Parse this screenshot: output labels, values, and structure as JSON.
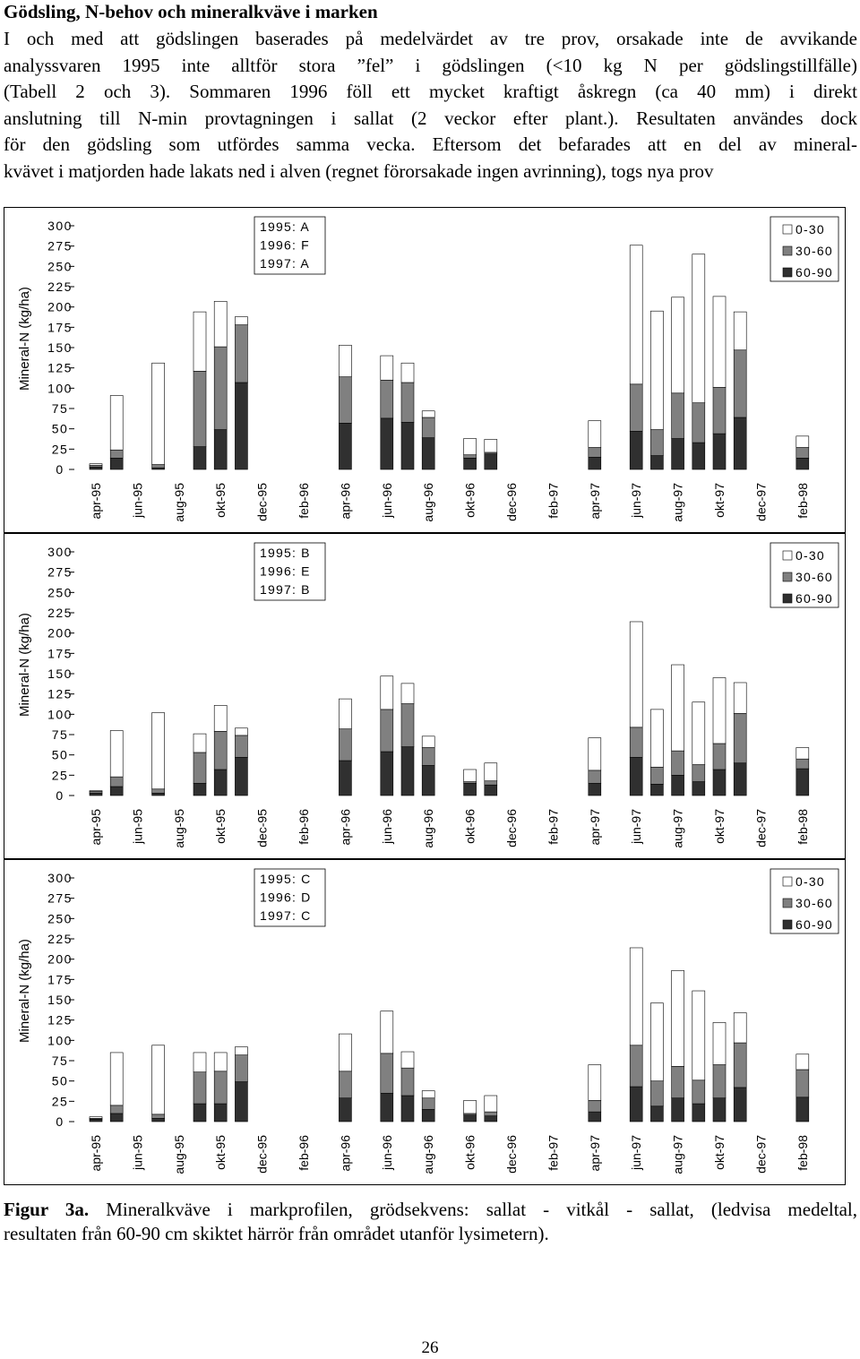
{
  "document": {
    "heading": "Gödsling, N-behov och mineralkväve i marken",
    "intro_lines": [
      "I och med att gödslingen baserades på medelvärdet av tre prov, orsakade inte de avvikande",
      "analyssvaren 1995 inte alltför stora ”fel” i gödslingen (<10 kg N per gödslingstillfälle)",
      "(Tabell 2 och 3). Sommaren 1996 föll ett mycket kraftigt åskregn (ca 40 mm) i direkt",
      "anslutning till N-min provtagningen i sallat (2 veckor efter plant.). Resultaten användes dock",
      "för den gödsling som utfördes samma vecka. Eftersom det befarades att en del av mineral-",
      "kvävet i matjorden hade lakats ned i alven (regnet förorsakade ingen avrinning), togs nya prov"
    ],
    "caption_label": "Figur 3a.",
    "caption_line1_rest": "Mineralkväve i markprofilen, grödsekvens: sallat - vitkål - sallat, (ledvisa medeltal,",
    "caption_line2": "resultaten från 60-90 cm skiktet härrör från området utanför lysimetern).",
    "page_number": "26"
  },
  "chart_data": [
    {
      "type": "bar",
      "stacked": true,
      "ylabel": "Mineral-N (kg/ha)",
      "ylim": [
        0,
        300
      ],
      "yticks": [
        "300",
        "275",
        "250",
        "225",
        "200",
        "175",
        "150",
        "125",
        "100",
        "75",
        "50",
        "25",
        "0"
      ],
      "categories": [
        "apr-95",
        "jun-95",
        "aug-95",
        "okt-95",
        "dec-95",
        "feb-96",
        "apr-96",
        "jun-96",
        "aug-96",
        "okt-96",
        "dec-96",
        "feb-97",
        "apr-97",
        "jun-97",
        "aug-97",
        "okt-97",
        "dec-97",
        "feb-98"
      ],
      "treatment_lines": [
        "1995: A",
        "1996: F",
        "1997: A"
      ],
      "legend_position": "top-right",
      "colors": {
        "0-30": "#ffffff",
        "30-60": "#808080",
        "60-90": "#303030"
      },
      "bars": [
        {
          "category": "apr-95",
          "slot": 0.0,
          "values": {
            "60-90": 3,
            "30-60": 2,
            "0-30": 2
          }
        },
        {
          "category": "apr-95",
          "slot": 0.5,
          "values": {
            "60-90": 14,
            "30-60": 10,
            "0-30": 67
          }
        },
        {
          "category": "jun-95",
          "slot": 1.5,
          "values": {
            "60-90": 2,
            "30-60": 4,
            "0-30": 125
          }
        },
        {
          "category": "aug-95",
          "slot": 2.5,
          "values": {
            "60-90": 28,
            "30-60": 93,
            "0-30": 73
          }
        },
        {
          "category": "okt-95",
          "slot": 3.0,
          "values": {
            "60-90": 49,
            "30-60": 102,
            "0-30": 56
          }
        },
        {
          "category": "okt-95",
          "slot": 3.5,
          "values": {
            "60-90": 107,
            "30-60": 71,
            "0-30": 10
          }
        },
        {
          "category": "apr-96",
          "slot": 6.0,
          "values": {
            "60-90": 57,
            "30-60": 57,
            "0-30": 39
          }
        },
        {
          "category": "jun-96",
          "slot": 7.0,
          "values": {
            "60-90": 63,
            "30-60": 47,
            "0-30": 30
          }
        },
        {
          "category": "jun-96",
          "slot": 7.5,
          "values": {
            "60-90": 58,
            "30-60": 49,
            "0-30": 24
          }
        },
        {
          "category": "aug-96",
          "slot": 8.0,
          "values": {
            "60-90": 39,
            "30-60": 25,
            "0-30": 8
          }
        },
        {
          "category": "okt-96",
          "slot": 9.0,
          "values": {
            "60-90": 14,
            "30-60": 4,
            "0-30": 20
          }
        },
        {
          "category": "okt-96",
          "slot": 9.5,
          "values": {
            "60-90": 19,
            "30-60": 2,
            "0-30": 16
          }
        },
        {
          "category": "apr-97",
          "slot": 12.0,
          "values": {
            "60-90": 15,
            "30-60": 12,
            "0-30": 33
          }
        },
        {
          "category": "jun-97",
          "slot": 13.0,
          "values": {
            "60-90": 47,
            "30-60": 58,
            "0-30": 171
          }
        },
        {
          "category": "jun-97",
          "slot": 13.5,
          "values": {
            "60-90": 17,
            "30-60": 32,
            "0-30": 146
          }
        },
        {
          "category": "aug-97",
          "slot": 14.0,
          "values": {
            "60-90": 38,
            "30-60": 56,
            "0-30": 118
          }
        },
        {
          "category": "aug-97",
          "slot": 14.5,
          "values": {
            "60-90": 33,
            "30-60": 49,
            "0-30": 183
          }
        },
        {
          "category": "okt-97",
          "slot": 15.0,
          "values": {
            "60-90": 44,
            "30-60": 57,
            "0-30": 112
          }
        },
        {
          "category": "okt-97",
          "slot": 15.5,
          "values": {
            "60-90": 64,
            "30-60": 83,
            "0-30": 47
          }
        },
        {
          "category": "feb-98",
          "slot": 17.0,
          "values": {
            "60-90": 14,
            "30-60": 13,
            "0-30": 14
          }
        }
      ]
    },
    {
      "type": "bar",
      "stacked": true,
      "ylabel": "Mineral-N (kg/ha)",
      "ylim": [
        0,
        300
      ],
      "yticks": [
        "300",
        "275",
        "250",
        "225",
        "200",
        "175",
        "150",
        "125",
        "100",
        "75",
        "50",
        "25",
        "0"
      ],
      "categories": [
        "apr-95",
        "jun-95",
        "aug-95",
        "okt-95",
        "dec-95",
        "feb-96",
        "apr-96",
        "jun-96",
        "aug-96",
        "okt-96",
        "dec-96",
        "feb-97",
        "apr-97",
        "jun-97",
        "aug-97",
        "okt-97",
        "dec-97",
        "feb-98"
      ],
      "treatment_lines": [
        "1995: B",
        "1996: E",
        "1997: B"
      ],
      "legend_position": "top-right",
      "colors": {
        "0-30": "#ffffff",
        "30-60": "#808080",
        "60-90": "#303030"
      },
      "bars": [
        {
          "category": "apr-95",
          "slot": 0.0,
          "values": {
            "60-90": 3,
            "30-60": 2,
            "0-30": 1
          }
        },
        {
          "category": "apr-95",
          "slot": 0.5,
          "values": {
            "60-90": 11,
            "30-60": 12,
            "0-30": 57
          }
        },
        {
          "category": "jun-95",
          "slot": 1.5,
          "values": {
            "60-90": 3,
            "30-60": 5,
            "0-30": 94
          }
        },
        {
          "category": "aug-95",
          "slot": 2.5,
          "values": {
            "60-90": 15,
            "30-60": 38,
            "0-30": 23
          }
        },
        {
          "category": "okt-95",
          "slot": 3.0,
          "values": {
            "60-90": 32,
            "30-60": 47,
            "0-30": 32
          }
        },
        {
          "category": "okt-95",
          "slot": 3.5,
          "values": {
            "60-90": 47,
            "30-60": 27,
            "0-30": 9
          }
        },
        {
          "category": "apr-96",
          "slot": 6.0,
          "values": {
            "60-90": 43,
            "30-60": 39,
            "0-30": 37
          }
        },
        {
          "category": "jun-96",
          "slot": 7.0,
          "values": {
            "60-90": 54,
            "30-60": 52,
            "0-30": 41
          }
        },
        {
          "category": "jun-96",
          "slot": 7.5,
          "values": {
            "60-90": 60,
            "30-60": 53,
            "0-30": 25
          }
        },
        {
          "category": "aug-96",
          "slot": 8.0,
          "values": {
            "60-90": 37,
            "30-60": 22,
            "0-30": 14
          }
        },
        {
          "category": "okt-96",
          "slot": 9.0,
          "values": {
            "60-90": 15,
            "30-60": 2,
            "0-30": 15
          }
        },
        {
          "category": "okt-96",
          "slot": 9.5,
          "values": {
            "60-90": 13,
            "30-60": 5,
            "0-30": 22
          }
        },
        {
          "category": "apr-97",
          "slot": 12.0,
          "values": {
            "60-90": 15,
            "30-60": 16,
            "0-30": 40
          }
        },
        {
          "category": "jun-97",
          "slot": 13.0,
          "values": {
            "60-90": 47,
            "30-60": 37,
            "0-30": 130
          }
        },
        {
          "category": "jun-97",
          "slot": 13.5,
          "values": {
            "60-90": 14,
            "30-60": 21,
            "0-30": 71
          }
        },
        {
          "category": "aug-97",
          "slot": 14.0,
          "values": {
            "60-90": 25,
            "30-60": 30,
            "0-30": 106
          }
        },
        {
          "category": "aug-97",
          "slot": 14.5,
          "values": {
            "60-90": 17,
            "30-60": 21,
            "0-30": 77
          }
        },
        {
          "category": "okt-97",
          "slot": 15.0,
          "values": {
            "60-90": 32,
            "30-60": 32,
            "0-30": 81
          }
        },
        {
          "category": "okt-97",
          "slot": 15.5,
          "values": {
            "60-90": 40,
            "30-60": 61,
            "0-30": 38
          }
        },
        {
          "category": "feb-98",
          "slot": 17.0,
          "values": {
            "60-90": 33,
            "30-60": 12,
            "0-30": 14
          }
        }
      ]
    },
    {
      "type": "bar",
      "stacked": true,
      "ylabel": "Mineral-N (kg/ha)",
      "ylim": [
        0,
        300
      ],
      "yticks": [
        "300",
        "275",
        "250",
        "225",
        "200",
        "175",
        "150",
        "125",
        "100",
        "75",
        "50",
        "25",
        "0"
      ],
      "categories": [
        "apr-95",
        "jun-95",
        "aug-95",
        "okt-95",
        "dec-95",
        "feb-96",
        "apr-96",
        "jun-96",
        "aug-96",
        "okt-96",
        "dec-96",
        "feb-97",
        "apr-97",
        "jun-97",
        "aug-97",
        "okt-97",
        "dec-97",
        "feb-98"
      ],
      "treatment_lines": [
        "1995: C",
        "1996: D",
        "1997: C"
      ],
      "legend_position": "top-right",
      "colors": {
        "0-30": "#ffffff",
        "30-60": "#808080",
        "60-90": "#303030"
      },
      "bars": [
        {
          "category": "apr-95",
          "slot": 0.0,
          "values": {
            "60-90": 3,
            "30-60": 1,
            "0-30": 2
          }
        },
        {
          "category": "apr-95",
          "slot": 0.5,
          "values": {
            "60-90": 10,
            "30-60": 10,
            "0-30": 65
          }
        },
        {
          "category": "jun-95",
          "slot": 1.5,
          "values": {
            "60-90": 4,
            "30-60": 5,
            "0-30": 85
          }
        },
        {
          "category": "aug-95",
          "slot": 2.5,
          "values": {
            "60-90": 22,
            "30-60": 39,
            "0-30": 24
          }
        },
        {
          "category": "okt-95",
          "slot": 3.0,
          "values": {
            "60-90": 22,
            "30-60": 40,
            "0-30": 23
          }
        },
        {
          "category": "okt-95",
          "slot": 3.5,
          "values": {
            "60-90": 49,
            "30-60": 33,
            "0-30": 10
          }
        },
        {
          "category": "apr-96",
          "slot": 6.0,
          "values": {
            "60-90": 29,
            "30-60": 33,
            "0-30": 46
          }
        },
        {
          "category": "jun-96",
          "slot": 7.0,
          "values": {
            "60-90": 35,
            "30-60": 49,
            "0-30": 52
          }
        },
        {
          "category": "jun-96",
          "slot": 7.5,
          "values": {
            "60-90": 32,
            "30-60": 34,
            "0-30": 20
          }
        },
        {
          "category": "aug-96",
          "slot": 8.0,
          "values": {
            "60-90": 15,
            "30-60": 14,
            "0-30": 9
          }
        },
        {
          "category": "okt-96",
          "slot": 9.0,
          "values": {
            "60-90": 8,
            "30-60": 2,
            "0-30": 16
          }
        },
        {
          "category": "okt-96",
          "slot": 9.5,
          "values": {
            "60-90": 7,
            "30-60": 5,
            "0-30": 20
          }
        },
        {
          "category": "apr-97",
          "slot": 12.0,
          "values": {
            "60-90": 12,
            "30-60": 14,
            "0-30": 44
          }
        },
        {
          "category": "jun-97",
          "slot": 13.0,
          "values": {
            "60-90": 43,
            "30-60": 51,
            "0-30": 120
          }
        },
        {
          "category": "jun-97",
          "slot": 13.5,
          "values": {
            "60-90": 19,
            "30-60": 31,
            "0-30": 96
          }
        },
        {
          "category": "aug-97",
          "slot": 14.0,
          "values": {
            "60-90": 29,
            "30-60": 39,
            "0-30": 118
          }
        },
        {
          "category": "aug-97",
          "slot": 14.5,
          "values": {
            "60-90": 22,
            "30-60": 29,
            "0-30": 110
          }
        },
        {
          "category": "okt-97",
          "slot": 15.0,
          "values": {
            "60-90": 29,
            "30-60": 41,
            "0-30": 52
          }
        },
        {
          "category": "okt-97",
          "slot": 15.5,
          "values": {
            "60-90": 42,
            "30-60": 55,
            "0-30": 37
          }
        },
        {
          "category": "feb-98",
          "slot": 17.0,
          "values": {
            "60-90": 30,
            "30-60": 34,
            "0-30": 19
          }
        }
      ]
    }
  ]
}
